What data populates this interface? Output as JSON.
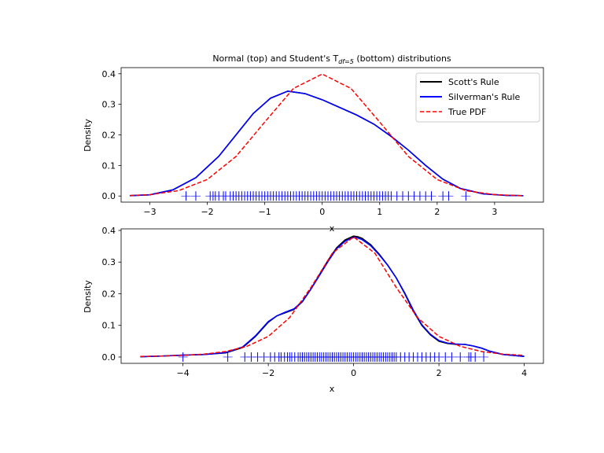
{
  "figure": {
    "title_main": "Normal (top) and Student's T",
    "title_sub": "df=5",
    "title_tail": " (bottom) distributions"
  },
  "colors": {
    "scott": "#000000",
    "silverman": "#0000ff",
    "true_pdf": "#ff0000",
    "rug": "#0000ff"
  },
  "chart_data": [
    {
      "type": "line",
      "name": "normal",
      "title": "Normal (top) and Student's T_{df=5} (bottom) distributions",
      "xlabel": "x",
      "ylabel": "Density",
      "xlim": [
        -3.5,
        3.85
      ],
      "ylim": [
        -0.02,
        0.42
      ],
      "xticks": [
        -3,
        -2,
        -1,
        0,
        1,
        2,
        3
      ],
      "xtick_labels": [
        "−3",
        "−2",
        "−1",
        "0",
        "1",
        "2",
        "3"
      ],
      "yticks": [
        0.0,
        0.1,
        0.2,
        0.3,
        0.4
      ],
      "ytick_labels": [
        "0.0",
        "0.1",
        "0.2",
        "0.3",
        "0.4"
      ],
      "legend": {
        "position": "top-right",
        "entries": [
          "Scott's Rule",
          "Silverman's Rule",
          "True PDF"
        ]
      },
      "series": [
        {
          "name": "Scott's Rule",
          "style": "solid",
          "x": [
            -3.35,
            -3.0,
            -2.6,
            -2.2,
            -1.8,
            -1.5,
            -1.2,
            -0.9,
            -0.6,
            -0.3,
            0.0,
            0.3,
            0.6,
            0.9,
            1.2,
            1.5,
            1.8,
            2.1,
            2.4,
            2.8,
            3.2,
            3.5
          ],
          "y": [
            0.001,
            0.004,
            0.02,
            0.06,
            0.13,
            0.2,
            0.27,
            0.32,
            0.343,
            0.335,
            0.315,
            0.29,
            0.265,
            0.235,
            0.195,
            0.15,
            0.1,
            0.055,
            0.025,
            0.007,
            0.002,
            0.001
          ]
        },
        {
          "name": "Silverman's Rule",
          "style": "solid",
          "x": [
            -3.35,
            -3.0,
            -2.6,
            -2.2,
            -1.8,
            -1.5,
            -1.2,
            -0.9,
            -0.6,
            -0.3,
            0.0,
            0.3,
            0.6,
            0.9,
            1.2,
            1.5,
            1.8,
            2.1,
            2.4,
            2.8,
            3.2,
            3.5
          ],
          "y": [
            0.001,
            0.004,
            0.02,
            0.06,
            0.13,
            0.2,
            0.27,
            0.32,
            0.343,
            0.335,
            0.315,
            0.29,
            0.265,
            0.235,
            0.195,
            0.15,
            0.1,
            0.055,
            0.025,
            0.007,
            0.002,
            0.001
          ]
        },
        {
          "name": "True PDF",
          "style": "dashed",
          "x": [
            -3.35,
            -3.0,
            -2.5,
            -2.0,
            -1.5,
            -1.0,
            -0.5,
            0.0,
            0.5,
            1.0,
            1.5,
            2.0,
            2.5,
            3.0,
            3.5
          ],
          "y": [
            0.0015,
            0.0044,
            0.0175,
            0.054,
            0.1295,
            0.242,
            0.352,
            0.399,
            0.352,
            0.242,
            0.1295,
            0.054,
            0.0175,
            0.0044,
            0.0009
          ]
        }
      ],
      "rug_y": 0.0,
      "rug_x": [
        -2.37,
        -2.2,
        -1.95,
        -1.9,
        -1.86,
        -1.8,
        -1.72,
        -1.68,
        -1.6,
        -1.55,
        -1.5,
        -1.45,
        -1.4,
        -1.35,
        -1.3,
        -1.25,
        -1.2,
        -1.15,
        -1.1,
        -1.05,
        -1.0,
        -0.95,
        -0.9,
        -0.85,
        -0.8,
        -0.75,
        -0.7,
        -0.65,
        -0.6,
        -0.55,
        -0.5,
        -0.45,
        -0.4,
        -0.35,
        -0.3,
        -0.25,
        -0.2,
        -0.15,
        -0.1,
        -0.05,
        0.0,
        0.05,
        0.1,
        0.15,
        0.2,
        0.25,
        0.3,
        0.35,
        0.4,
        0.45,
        0.5,
        0.55,
        0.6,
        0.65,
        0.7,
        0.75,
        0.8,
        0.85,
        0.9,
        0.95,
        1.0,
        1.05,
        1.1,
        1.15,
        1.2,
        1.3,
        1.4,
        1.5,
        1.6,
        1.7,
        1.8,
        1.9,
        2.1,
        2.2,
        2.5
      ]
    },
    {
      "type": "line",
      "name": "student-t",
      "xlabel": "x",
      "ylabel": "Density",
      "xlim": [
        -5.45,
        4.45
      ],
      "ylim": [
        -0.02,
        0.405
      ],
      "xticks": [
        -4,
        -2,
        0,
        2,
        4
      ],
      "xtick_labels": [
        "−4",
        "−2",
        "0",
        "2",
        "4"
      ],
      "yticks": [
        0.0,
        0.1,
        0.2,
        0.3,
        0.4
      ],
      "ytick_labels": [
        "0.0",
        "0.1",
        "0.2",
        "0.3",
        "0.4"
      ],
      "series": [
        {
          "name": "Scott's Rule",
          "style": "solid",
          "x": [
            -5.0,
            -4.5,
            -4.0,
            -3.5,
            -3.0,
            -2.6,
            -2.3,
            -2.0,
            -1.8,
            -1.6,
            -1.4,
            -1.2,
            -1.0,
            -0.8,
            -0.6,
            -0.4,
            -0.2,
            0.0,
            0.1,
            0.2,
            0.4,
            0.6,
            0.8,
            1.0,
            1.2,
            1.4,
            1.6,
            1.8,
            2.0,
            2.2,
            2.4,
            2.6,
            2.8,
            3.0,
            3.2,
            3.5,
            4.0
          ],
          "y": [
            0.001,
            0.003,
            0.006,
            0.008,
            0.013,
            0.03,
            0.065,
            0.11,
            0.13,
            0.14,
            0.15,
            0.175,
            0.215,
            0.26,
            0.305,
            0.345,
            0.37,
            0.382,
            0.38,
            0.375,
            0.355,
            0.325,
            0.29,
            0.25,
            0.2,
            0.145,
            0.1,
            0.07,
            0.05,
            0.043,
            0.04,
            0.04,
            0.035,
            0.028,
            0.018,
            0.008,
            0.002
          ]
        },
        {
          "name": "Silverman's Rule",
          "style": "solid",
          "x": [
            -5.0,
            -4.5,
            -4.0,
            -3.5,
            -3.0,
            -2.6,
            -2.3,
            -2.0,
            -1.8,
            -1.6,
            -1.4,
            -1.2,
            -1.0,
            -0.8,
            -0.6,
            -0.4,
            -0.2,
            0.0,
            0.1,
            0.2,
            0.4,
            0.6,
            0.8,
            1.0,
            1.2,
            1.4,
            1.6,
            1.8,
            2.0,
            2.2,
            2.4,
            2.6,
            2.8,
            3.0,
            3.2,
            3.5,
            4.0
          ],
          "y": [
            0.001,
            0.003,
            0.006,
            0.008,
            0.014,
            0.032,
            0.067,
            0.112,
            0.13,
            0.142,
            0.152,
            0.176,
            0.215,
            0.258,
            0.302,
            0.342,
            0.366,
            0.378,
            0.376,
            0.371,
            0.352,
            0.323,
            0.29,
            0.25,
            0.202,
            0.148,
            0.102,
            0.072,
            0.052,
            0.044,
            0.041,
            0.04,
            0.035,
            0.028,
            0.018,
            0.008,
            0.002
          ]
        },
        {
          "name": "True PDF",
          "style": "dashed",
          "x": [
            -5.0,
            -4.5,
            -4.0,
            -3.5,
            -3.0,
            -2.5,
            -2.0,
            -1.5,
            -1.0,
            -0.5,
            0.0,
            0.5,
            1.0,
            1.5,
            2.0,
            2.5,
            3.0,
            3.5,
            4.0
          ],
          "y": [
            0.0018,
            0.0031,
            0.0051,
            0.0092,
            0.0173,
            0.0338,
            0.0651,
            0.1245,
            0.2197,
            0.3279,
            0.3796,
            0.3279,
            0.2197,
            0.1245,
            0.0651,
            0.0338,
            0.0173,
            0.0092,
            0.0051
          ]
        }
      ],
      "rug_y": 0.0,
      "rug_x": [
        -4.0,
        -2.95,
        -2.55,
        -2.4,
        -2.25,
        -2.1,
        -1.95,
        -1.85,
        -1.75,
        -1.7,
        -1.62,
        -1.55,
        -1.5,
        -1.45,
        -1.38,
        -1.3,
        -1.25,
        -1.2,
        -1.15,
        -1.1,
        -1.05,
        -1.0,
        -0.95,
        -0.9,
        -0.85,
        -0.8,
        -0.75,
        -0.7,
        -0.65,
        -0.6,
        -0.55,
        -0.5,
        -0.45,
        -0.4,
        -0.35,
        -0.3,
        -0.25,
        -0.2,
        -0.15,
        -0.1,
        -0.05,
        0.0,
        0.05,
        0.1,
        0.15,
        0.2,
        0.25,
        0.3,
        0.35,
        0.4,
        0.45,
        0.5,
        0.55,
        0.6,
        0.65,
        0.7,
        0.75,
        0.8,
        0.85,
        0.9,
        0.95,
        1.0,
        1.1,
        1.2,
        1.3,
        1.4,
        1.5,
        1.6,
        1.7,
        1.8,
        1.9,
        2.0,
        2.15,
        2.3,
        2.5,
        2.7,
        2.75,
        2.85,
        3.05
      ]
    }
  ]
}
